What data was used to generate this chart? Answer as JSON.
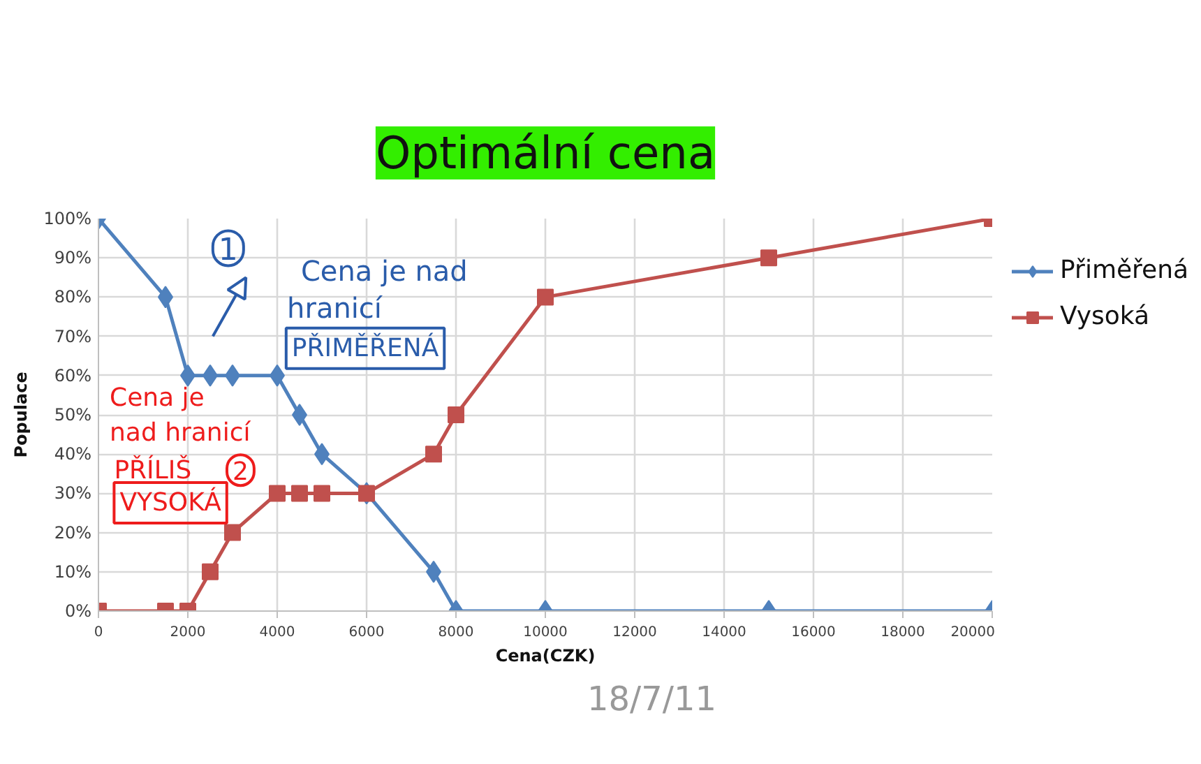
{
  "chart_data": {
    "type": "line",
    "title": "Optimální cena",
    "xlabel": "Cena(CZK)",
    "ylabel": "Populace",
    "x": [
      0,
      1500,
      2000,
      2500,
      3000,
      4000,
      4500,
      5000,
      6000,
      7500,
      8000,
      10000,
      15000,
      20000
    ],
    "series": [
      {
        "name": "Přiměřená",
        "color": "#4f81bd",
        "marker": "diamond",
        "values": [
          100,
          80,
          60,
          60,
          60,
          60,
          50,
          40,
          30,
          10,
          0,
          0,
          0,
          0
        ]
      },
      {
        "name": "Vysoká",
        "color": "#c0504d",
        "marker": "square",
        "values": [
          0,
          0,
          0,
          10,
          20,
          30,
          30,
          30,
          30,
          40,
          50,
          80,
          90,
          100
        ]
      }
    ],
    "xlim": [
      0,
      20000
    ],
    "xticks": [
      0,
      2000,
      4000,
      6000,
      8000,
      10000,
      12000,
      14000,
      16000,
      18000,
      20000
    ],
    "ylim": [
      0,
      100
    ],
    "yticks": [
      {
        "value": 0,
        "label": "0%"
      },
      {
        "value": 10,
        "label": "10%"
      },
      {
        "value": 20,
        "label": "20%"
      },
      {
        "value": 30,
        "label": "30%"
      },
      {
        "value": 40,
        "label": "40%"
      },
      {
        "value": 50,
        "label": "50%"
      },
      {
        "value": 60,
        "label": "60%"
      },
      {
        "value": 70,
        "label": "70%"
      },
      {
        "value": 80,
        "label": "80%"
      },
      {
        "value": 90,
        "label": "90%"
      },
      {
        "value": 100,
        "label": "100%"
      }
    ],
    "grid": true,
    "legend": "right",
    "annotations": [
      "1",
      "Cena je nad",
      "hranicí",
      "PŘIMĚŘENÁ",
      "Cena je",
      "nad hranicí",
      "PŘÍLIŠ",
      "2",
      "VYSOKÁ",
      "18/7/11"
    ]
  }
}
